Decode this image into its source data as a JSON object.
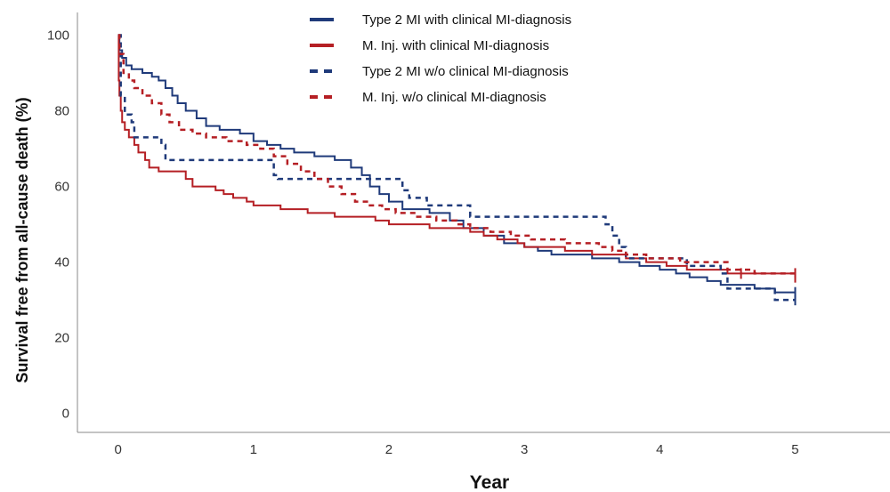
{
  "chart_data": {
    "type": "line",
    "title": "",
    "xlabel": "Year",
    "ylabel": "Survival free from all-cause death (%)",
    "xlim": [
      -0.3,
      5.7
    ],
    "ylim": [
      -5,
      106
    ],
    "x_ticks": [
      0,
      1,
      2,
      3,
      4,
      5
    ],
    "y_ticks": [
      0,
      20,
      40,
      60,
      80,
      100
    ],
    "grid": false,
    "legend_position": "top-center",
    "series": [
      {
        "name": "Type 2 MI with clinical MI-diagnosis",
        "color": "#1f3a7a",
        "dash": "solid",
        "points": [
          [
            0,
            100
          ],
          [
            0.01,
            96
          ],
          [
            0.03,
            94
          ],
          [
            0.06,
            92
          ],
          [
            0.1,
            91
          ],
          [
            0.18,
            90
          ],
          [
            0.25,
            89
          ],
          [
            0.3,
            88
          ],
          [
            0.35,
            86
          ],
          [
            0.4,
            84
          ],
          [
            0.44,
            82
          ],
          [
            0.5,
            80
          ],
          [
            0.58,
            78
          ],
          [
            0.65,
            76
          ],
          [
            0.75,
            75
          ],
          [
            0.9,
            74
          ],
          [
            1.0,
            72
          ],
          [
            1.1,
            71
          ],
          [
            1.2,
            70
          ],
          [
            1.3,
            69
          ],
          [
            1.45,
            68
          ],
          [
            1.6,
            67
          ],
          [
            1.72,
            65
          ],
          [
            1.8,
            63
          ],
          [
            1.86,
            60
          ],
          [
            1.93,
            58
          ],
          [
            2.0,
            56
          ],
          [
            2.1,
            54
          ],
          [
            2.3,
            53
          ],
          [
            2.45,
            51
          ],
          [
            2.55,
            49
          ],
          [
            2.7,
            47
          ],
          [
            2.85,
            45
          ],
          [
            3.0,
            44
          ],
          [
            3.1,
            43
          ],
          [
            3.2,
            42
          ],
          [
            3.5,
            41
          ],
          [
            3.7,
            40
          ],
          [
            3.85,
            39
          ],
          [
            4.0,
            38
          ],
          [
            4.12,
            37
          ],
          [
            4.22,
            36
          ],
          [
            4.35,
            35
          ],
          [
            4.45,
            34
          ],
          [
            4.7,
            33
          ],
          [
            4.85,
            32
          ],
          [
            5.0,
            32
          ]
        ],
        "censor_x": [
          5.0
        ]
      },
      {
        "name": "M. Inj. with clinical MI-diagnosis",
        "color": "#b51f24",
        "dash": "solid",
        "points": [
          [
            0,
            100
          ],
          [
            0.005,
            88
          ],
          [
            0.01,
            84
          ],
          [
            0.02,
            80
          ],
          [
            0.03,
            77
          ],
          [
            0.05,
            75
          ],
          [
            0.08,
            73
          ],
          [
            0.12,
            71
          ],
          [
            0.15,
            69
          ],
          [
            0.2,
            67
          ],
          [
            0.23,
            65
          ],
          [
            0.3,
            64
          ],
          [
            0.5,
            62
          ],
          [
            0.55,
            60
          ],
          [
            0.72,
            59
          ],
          [
            0.78,
            58
          ],
          [
            0.85,
            57
          ],
          [
            0.95,
            56
          ],
          [
            1.0,
            55
          ],
          [
            1.2,
            54
          ],
          [
            1.4,
            53
          ],
          [
            1.6,
            52
          ],
          [
            1.9,
            51
          ],
          [
            2.0,
            50
          ],
          [
            2.3,
            49
          ],
          [
            2.6,
            48
          ],
          [
            2.7,
            47
          ],
          [
            2.8,
            46
          ],
          [
            2.95,
            45
          ],
          [
            3.0,
            44
          ],
          [
            3.3,
            43
          ],
          [
            3.5,
            42
          ],
          [
            3.75,
            41
          ],
          [
            3.9,
            40
          ],
          [
            4.05,
            39
          ],
          [
            4.2,
            38
          ],
          [
            4.5,
            37
          ],
          [
            4.6,
            37
          ],
          [
            5.0,
            36
          ]
        ],
        "censor_x": [
          4.6,
          5.0
        ]
      },
      {
        "name": "Type 2 MI w/o clinical MI-diagnosis",
        "color": "#1f3a7a",
        "dash": "dashed",
        "points": [
          [
            0,
            100
          ],
          [
            0.02,
            84
          ],
          [
            0.05,
            79
          ],
          [
            0.1,
            77
          ],
          [
            0.12,
            73
          ],
          [
            0.32,
            71
          ],
          [
            0.35,
            67
          ],
          [
            1.15,
            63
          ],
          [
            1.18,
            62
          ],
          [
            2.1,
            59
          ],
          [
            2.15,
            57
          ],
          [
            2.28,
            55
          ],
          [
            2.6,
            52
          ],
          [
            3.6,
            50
          ],
          [
            3.65,
            47
          ],
          [
            3.7,
            44
          ],
          [
            3.75,
            41
          ],
          [
            4.2,
            39
          ],
          [
            4.45,
            37
          ],
          [
            4.5,
            33
          ],
          [
            4.85,
            30
          ],
          [
            5.0,
            30
          ]
        ],
        "censor_x": [
          5.0
        ]
      },
      {
        "name": "M. Inj. w/o clinical MI-diagnosis",
        "color": "#b51f24",
        "dash": "dashed",
        "points": [
          [
            0,
            100
          ],
          [
            0.01,
            95
          ],
          [
            0.04,
            90
          ],
          [
            0.08,
            88
          ],
          [
            0.12,
            86
          ],
          [
            0.18,
            84
          ],
          [
            0.25,
            82
          ],
          [
            0.32,
            79
          ],
          [
            0.38,
            77
          ],
          [
            0.45,
            75
          ],
          [
            0.55,
            74
          ],
          [
            0.65,
            73
          ],
          [
            0.8,
            72
          ],
          [
            0.95,
            71
          ],
          [
            1.05,
            70
          ],
          [
            1.15,
            68
          ],
          [
            1.25,
            66
          ],
          [
            1.35,
            64
          ],
          [
            1.45,
            62
          ],
          [
            1.55,
            60
          ],
          [
            1.65,
            58
          ],
          [
            1.75,
            56
          ],
          [
            1.85,
            55
          ],
          [
            1.95,
            54
          ],
          [
            2.05,
            53
          ],
          [
            2.2,
            52
          ],
          [
            2.35,
            51
          ],
          [
            2.5,
            50
          ],
          [
            2.6,
            49
          ],
          [
            2.75,
            48
          ],
          [
            2.9,
            47
          ],
          [
            3.05,
            46
          ],
          [
            3.3,
            45
          ],
          [
            3.55,
            44
          ],
          [
            3.65,
            43
          ],
          [
            3.75,
            42
          ],
          [
            3.9,
            41
          ],
          [
            4.15,
            40
          ],
          [
            4.5,
            38
          ],
          [
            4.7,
            37
          ],
          [
            5.0,
            37
          ]
        ],
        "censor_x": [
          5.0
        ]
      }
    ]
  }
}
